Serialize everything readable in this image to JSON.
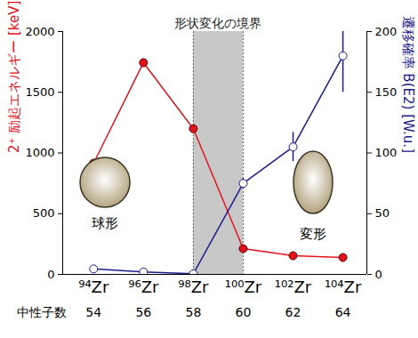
{
  "chart_data": {
    "type": "line",
    "categories": [
      "⁹⁴Zr",
      "⁹⁶Zr",
      "⁹⁸Zr",
      "¹⁰⁰Zr",
      "¹⁰²Zr",
      "¹⁰⁴Zr"
    ],
    "neutron_label": "中性子数",
    "neutron_numbers": [
      54,
      56,
      58,
      60,
      62,
      64
    ],
    "series": [
      {
        "name": "2⁺ 励起エネルギー [keV]",
        "color": "#e0141e",
        "marker": "circle",
        "values": [
          916,
          1744,
          1200,
          212,
          154,
          139
        ]
      },
      {
        "name": "遷移確率 B(E2) [W.u.]",
        "color": "#1c1c8a",
        "marker": "open circle",
        "axis": "y2",
        "values": [
          4.5,
          2,
          0.5,
          75,
          105,
          180
        ],
        "errors": [
          1,
          3,
          0.5,
          4,
          12,
          30
        ]
      }
    ],
    "ylim": [
      0,
      2000
    ],
    "yticks": [
      0,
      500,
      1000,
      1500,
      2000
    ],
    "y2lim": [
      0,
      200
    ],
    "y2ticks": [
      0,
      50,
      100,
      150,
      200
    ],
    "band": {
      "from": "⁹⁸Zr",
      "to": "¹⁰⁰Zr",
      "label": "形状変化の境界"
    },
    "annotations": [
      "球形",
      "変形"
    ],
    "grid": false
  }
}
